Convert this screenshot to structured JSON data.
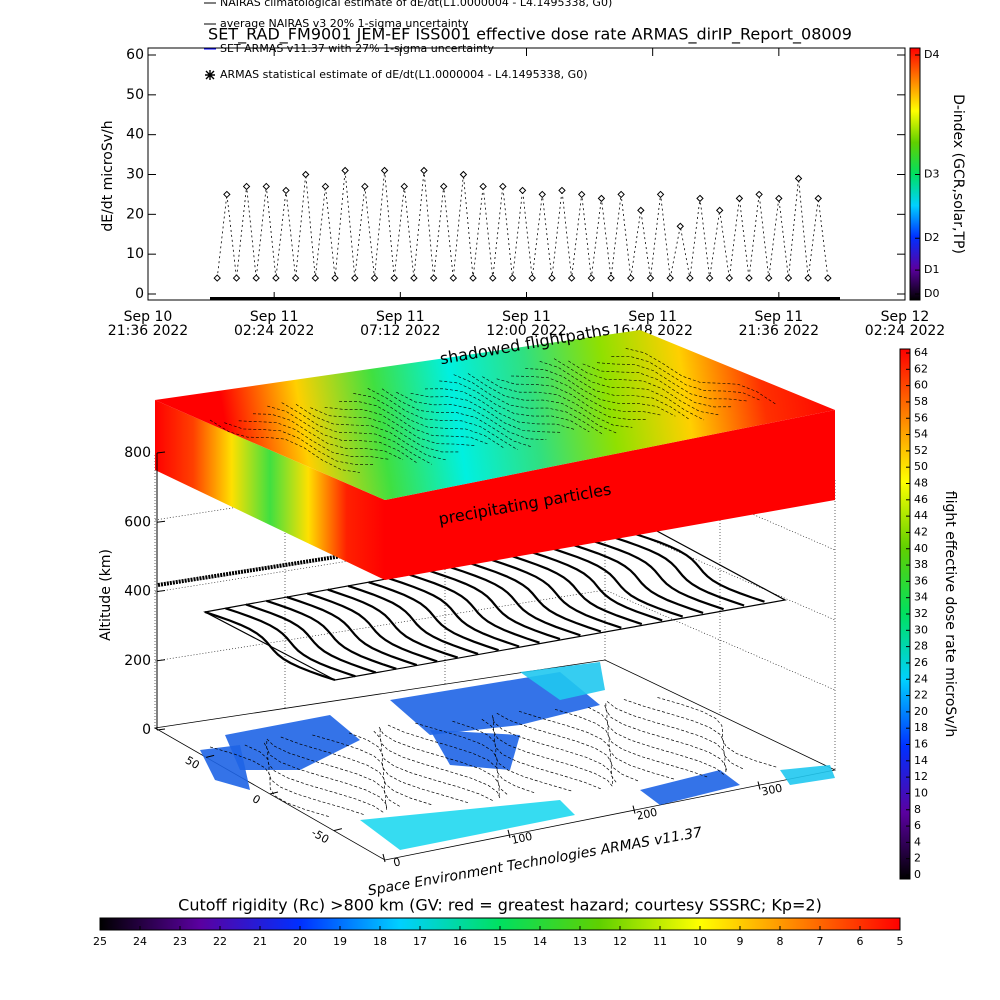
{
  "chart_data": [
    {
      "type": "scatter",
      "title": "SET_RAD_FM9001  JEM-EF ISS001 effective dose rate ARMAS_dirIP_Report_08009",
      "ylabel": "dE/dt microSv/h",
      "legend": [
        "NAIRAS climatological estimate of dE/dt(L1.0000004 - L4.1495338, G0)",
        "average NAIRAS v3 20% 1-sigma uncertainty",
        "SET ARMAS v11.37 with 27% 1-sigma uncertainty",
        "ARMAS statistical estimate of dE/dt(L1.0000004 - L4.1495338, G0)"
      ],
      "color": "#000000",
      "x": [
        "2022-09-11 00:14",
        "2022-09-11 00:36",
        "2022-09-11 00:58",
        "2022-09-11 01:21",
        "2022-09-11 01:43",
        "2022-09-11 02:06",
        "2022-09-11 02:28",
        "2022-09-11 02:51",
        "2022-09-11 03:13",
        "2022-09-11 03:36",
        "2022-09-11 03:58",
        "2022-09-11 04:21",
        "2022-09-11 04:43",
        "2022-09-11 05:06",
        "2022-09-11 05:28",
        "2022-09-11 05:51",
        "2022-09-11 06:13",
        "2022-09-11 06:36",
        "2022-09-11 06:58",
        "2022-09-11 07:21",
        "2022-09-11 07:43",
        "2022-09-11 08:06",
        "2022-09-11 08:28",
        "2022-09-11 08:51",
        "2022-09-11 09:13",
        "2022-09-11 09:36",
        "2022-09-11 09:58",
        "2022-09-11 10:21",
        "2022-09-11 10:43",
        "2022-09-11 11:06",
        "2022-09-11 11:28",
        "2022-09-11 11:51",
        "2022-09-11 12:13",
        "2022-09-11 12:36",
        "2022-09-11 12:58",
        "2022-09-11 13:21",
        "2022-09-11 13:43",
        "2022-09-11 14:06",
        "2022-09-11 14:28",
        "2022-09-11 14:51",
        "2022-09-11 15:13",
        "2022-09-11 15:36",
        "2022-09-11 15:58",
        "2022-09-11 16:21",
        "2022-09-11 16:43",
        "2022-09-11 17:06",
        "2022-09-11 17:28",
        "2022-09-11 17:51",
        "2022-09-11 18:13",
        "2022-09-11 18:36",
        "2022-09-11 18:58",
        "2022-09-11 19:21",
        "2022-09-11 19:43",
        "2022-09-11 20:06",
        "2022-09-11 20:28",
        "2022-09-11 20:51",
        "2022-09-11 21:13",
        "2022-09-11 21:36",
        "2022-09-11 21:58",
        "2022-09-11 22:21",
        "2022-09-11 22:43",
        "2022-09-11 23:06",
        "2022-09-11 23:28"
      ],
      "values": [
        4,
        25,
        4,
        27,
        4,
        27,
        4,
        26,
        4,
        30,
        4,
        27,
        4,
        31,
        4,
        27,
        4,
        31,
        4,
        27,
        4,
        31,
        4,
        27,
        4,
        30,
        4,
        27,
        4,
        27,
        4,
        26,
        4,
        25,
        4,
        26,
        4,
        25,
        4,
        24,
        4,
        25,
        4,
        21,
        4,
        25,
        4,
        17,
        4,
        24,
        4,
        21,
        4,
        24,
        4,
        25,
        4,
        24,
        4,
        29,
        4,
        24,
        4
      ],
      "xlim": [
        "2022-09-10 21:36",
        "2022-09-12 02:24"
      ],
      "xticks": [
        {
          "value": "2022-09-10 21:36",
          "label": [
            "Sep 10",
            "21:36 2022"
          ]
        },
        {
          "value": "2022-09-11 02:24",
          "label": [
            "Sep 11",
            "02:24 2022"
          ]
        },
        {
          "value": "2022-09-11 07:12",
          "label": [
            "Sep 11",
            "07:12 2022"
          ]
        },
        {
          "value": "2022-09-11 12:00",
          "label": [
            "Sep 11",
            "12:00 2022"
          ]
        },
        {
          "value": "2022-09-11 16:48",
          "label": [
            "Sep 11",
            "16:48 2022"
          ]
        },
        {
          "value": "2022-09-11 21:36",
          "label": [
            "Sep 11",
            "21:36 2022"
          ]
        },
        {
          "value": "2022-09-12 02:24",
          "label": [
            "Sep 12",
            "02:24 2022"
          ]
        }
      ],
      "ylim": [
        0,
        60
      ],
      "yticks": [
        0,
        10,
        20,
        30,
        40,
        50,
        60
      ],
      "colorbar": {
        "label": "D-index (GCR,solar,TP)",
        "ticks": [
          {
            "value": 0,
            "label": "D0"
          },
          {
            "value": 6,
            "label": "D1"
          },
          {
            "value": 14,
            "label": "D2"
          },
          {
            "value": 30,
            "label": "D3"
          },
          {
            "value": 60,
            "label": "D4"
          }
        ],
        "colors": [
          "#000000",
          "#5a00a0",
          "#0030ff",
          "#00d0ff",
          "#00e060",
          "#60d000",
          "#ffff00",
          "#ff8000",
          "#ff0000"
        ]
      }
    },
    {
      "type": "surface3d",
      "zlabel": "Altitude (km)",
      "zlim": [
        0,
        800
      ],
      "zticks": [
        0,
        200,
        400,
        600,
        800
      ],
      "xlim": [
        0,
        360
      ],
      "xticks": [
        0,
        100,
        200,
        300
      ],
      "ylim": [
        -90,
        90
      ],
      "yticks": [
        -50,
        0,
        50
      ],
      "annotations": [
        "shadowed flightpaths",
        "precipitating particles"
      ],
      "credit": "Space Environment Technologies ARMAS v11.37"
    },
    {
      "type": "colorbar",
      "label": "flight effective dose rate microSv/h",
      "ylim": [
        0,
        64
      ],
      "yticks": [
        0,
        2,
        4,
        6,
        8,
        10,
        12,
        14,
        16,
        18,
        20,
        22,
        24,
        26,
        28,
        30,
        32,
        34,
        36,
        38,
        40,
        42,
        44,
        46,
        48,
        50,
        52,
        54,
        56,
        58,
        60,
        62,
        64
      ],
      "colors": [
        "#000000",
        "#5a00a0",
        "#0030ff",
        "#00d0ff",
        "#00e060",
        "#60d000",
        "#ffff00",
        "#ff8000",
        "#ff0000"
      ]
    },
    {
      "type": "colorbar",
      "label": "Cutoff rigidity (Rc) >800 km (GV: red = greatest hazard; courtesy SSSRC; Kp=2)",
      "xlim": [
        25,
        5
      ],
      "xticks": [
        25,
        24,
        23,
        22,
        21,
        20,
        19,
        18,
        17,
        16,
        15,
        14,
        13,
        12,
        11,
        10,
        9,
        8,
        7,
        6,
        5
      ],
      "colors": [
        "#000000",
        "#5a00a0",
        "#0030ff",
        "#00d0ff",
        "#00e060",
        "#60d000",
        "#ffff00",
        "#ff8000",
        "#ff0000"
      ]
    }
  ]
}
